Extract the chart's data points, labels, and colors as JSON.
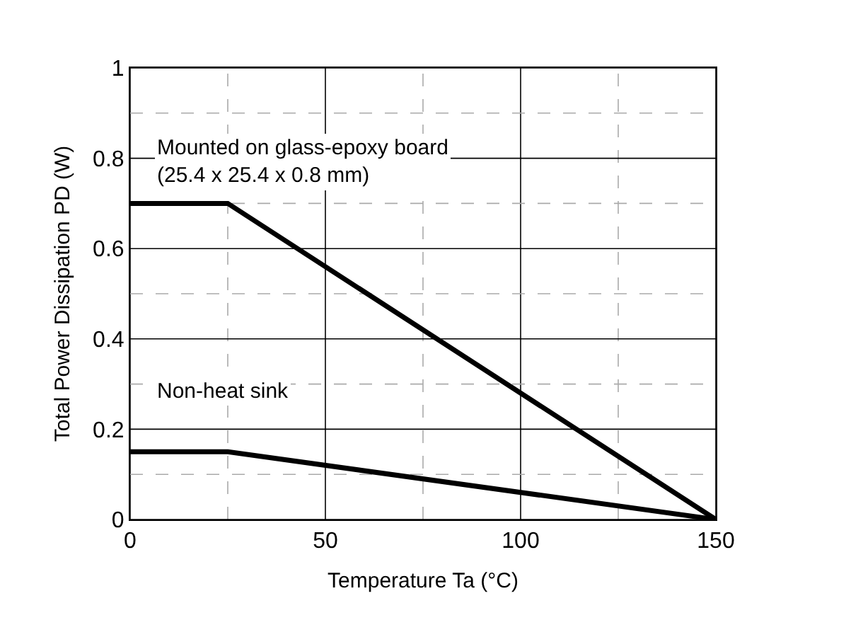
{
  "chart_data": {
    "type": "line",
    "xlabel": "Temperature Ta (°C)",
    "ylabel": "Total Power Dissipation PD (W)",
    "series": [
      {
        "color": "#000000",
        "x": [
          0,
          25,
          150
        ],
        "values": [
          0.7,
          0.7,
          0
        ]
      },
      {
        "color": "#000000",
        "x": [
          0,
          25,
          150
        ],
        "values": [
          0.15,
          0.15,
          0
        ]
      }
    ],
    "xlim": [
      0,
      150
    ],
    "ylim": [
      0,
      1
    ],
    "xticks": [
      0,
      {
        "value": 25,
        "label": null
      },
      50,
      {
        "value": 75,
        "label": null
      },
      100,
      {
        "value": 125,
        "label": null
      },
      150
    ],
    "yticks": [
      0,
      {
        "value": 0.1,
        "label": null
      },
      0.2,
      {
        "value": 0.3,
        "label": null
      },
      0.4,
      {
        "value": 0.5,
        "label": null
      },
      0.6,
      {
        "value": 0.7,
        "label": null
      },
      0.8,
      {
        "value": 0.9,
        "label": null
      },
      1
    ],
    "grid": true,
    "marker": "none",
    "line_style": "solid",
    "annotations": [
      "Mounted on glass-epoxy board\n(25.4 x 25.4 x 0.8 mm)",
      "Non-heat sink"
    ]
  }
}
